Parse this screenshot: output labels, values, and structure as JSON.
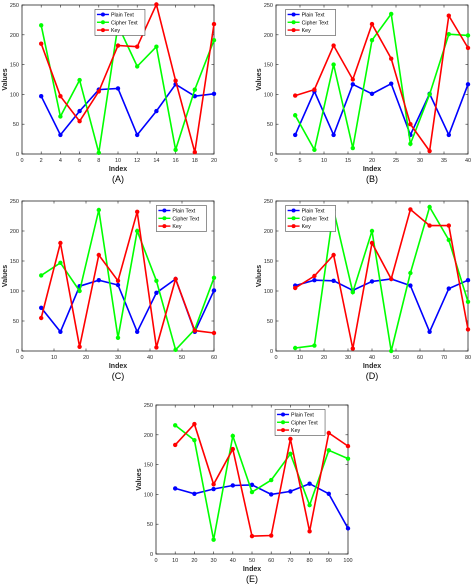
{
  "chart_data": [
    {
      "type": "line",
      "panel_label": "(A)",
      "xlabel": "Index",
      "ylabel": "Values",
      "xlim": [
        0,
        20
      ],
      "ylim": [
        0,
        250
      ],
      "xticks": [
        0,
        2,
        4,
        6,
        8,
        10,
        12,
        14,
        16,
        18,
        20
      ],
      "yticks": [
        0,
        50,
        100,
        150,
        200,
        250
      ],
      "legend_position": "top",
      "series": [
        {
          "name": "Plain Text",
          "color": "#0000ff",
          "x": [
            2,
            4,
            6,
            8,
            10,
            12,
            14,
            16,
            18,
            20
          ],
          "y": [
            97,
            32,
            72,
            108,
            110,
            32,
            72,
            117,
            97,
            101
          ]
        },
        {
          "name": "Cipher Text",
          "color": "#00ff00",
          "x": [
            2,
            4,
            6,
            8,
            10,
            12,
            14,
            16,
            18,
            20
          ],
          "y": [
            216,
            63,
            124,
            2,
            216,
            147,
            180,
            7,
            108,
            191
          ]
        },
        {
          "name": "Key",
          "color": "#ff0000",
          "x": [
            2,
            4,
            6,
            8,
            10,
            12,
            14,
            16,
            18,
            20
          ],
          "y": [
            185,
            97,
            55,
            105,
            182,
            180,
            251,
            123,
            3,
            218
          ]
        }
      ]
    },
    {
      "type": "line",
      "panel_label": "(B)",
      "xlabel": "Index",
      "ylabel": "Values",
      "xlim": [
        0,
        40
      ],
      "ylim": [
        0,
        250
      ],
      "xticks": [
        0,
        5,
        10,
        15,
        20,
        25,
        30,
        35,
        40
      ],
      "yticks": [
        0,
        50,
        100,
        150,
        200,
        250
      ],
      "legend_position": "top-left",
      "series": [
        {
          "name": "Plain Text",
          "color": "#0000ff",
          "x": [
            4,
            8,
            12,
            16,
            20,
            24,
            28,
            32,
            36,
            40
          ],
          "y": [
            32,
            105,
            32,
            117,
            101,
            118,
            32,
            101,
            32,
            117
          ]
        },
        {
          "name": "Cipher Text",
          "color": "#00ff00",
          "x": [
            4,
            8,
            12,
            16,
            20,
            24,
            28,
            32,
            36,
            40
          ],
          "y": [
            65,
            7,
            150,
            10,
            191,
            235,
            17,
            100,
            201,
            199
          ]
        },
        {
          "name": "Key",
          "color": "#ff0000",
          "x": [
            4,
            8,
            12,
            16,
            20,
            24,
            28,
            32,
            36,
            40
          ],
          "y": [
            98,
            108,
            182,
            125,
            218,
            160,
            50,
            5,
            232,
            178
          ]
        }
      ]
    },
    {
      "type": "line",
      "panel_label": "(C)",
      "xlabel": "Index",
      "ylabel": "Values",
      "xlim": [
        0,
        60
      ],
      "ylim": [
        0,
        250
      ],
      "xticks": [
        0,
        10,
        20,
        30,
        40,
        50,
        60
      ],
      "yticks": [
        0,
        50,
        100,
        150,
        200,
        250
      ],
      "legend_position": "top-right",
      "series": [
        {
          "name": "Plain Text",
          "color": "#0000ff",
          "x": [
            6,
            12,
            18,
            24,
            30,
            36,
            42,
            48,
            54,
            60
          ],
          "y": [
            72,
            32,
            108,
            118,
            110,
            32,
            97,
            120,
            32,
            101
          ]
        },
        {
          "name": "Cipher Text",
          "color": "#00ff00",
          "x": [
            6,
            12,
            18,
            24,
            30,
            36,
            42,
            48,
            54,
            60
          ],
          "y": [
            126,
            147,
            100,
            235,
            22,
            200,
            117,
            2,
            36,
            122
          ]
        },
        {
          "name": "Key",
          "color": "#ff0000",
          "x": [
            6,
            12,
            18,
            24,
            30,
            36,
            42,
            48,
            54,
            60
          ],
          "y": [
            55,
            180,
            7,
            160,
            117,
            232,
            6,
            120,
            34,
            30
          ]
        }
      ]
    },
    {
      "type": "line",
      "panel_label": "(D)",
      "xlabel": "Index",
      "ylabel": "Values",
      "xlim": [
        0,
        80
      ],
      "ylim": [
        0,
        250
      ],
      "xticks": [
        0,
        10,
        20,
        30,
        40,
        50,
        60,
        70,
        80
      ],
      "yticks": [
        0,
        50,
        100,
        150,
        200,
        250
      ],
      "legend_position": "top-left",
      "series": [
        {
          "name": "Plain Text",
          "color": "#0000ff",
          "x": [
            8,
            16,
            24,
            32,
            40,
            48,
            56,
            64,
            72,
            80
          ],
          "y": [
            109,
            118,
            117,
            101,
            116,
            120,
            109,
            32,
            104,
            118
          ]
        },
        {
          "name": "Cipher Text",
          "color": "#00ff00",
          "x": [
            8,
            16,
            24,
            32,
            40,
            48,
            56,
            64,
            72,
            80
          ],
          "y": [
            5,
            9,
            235,
            98,
            200,
            0,
            130,
            240,
            185,
            82
          ]
        },
        {
          "name": "Key",
          "color": "#ff0000",
          "x": [
            8,
            16,
            24,
            32,
            40,
            48,
            56,
            64,
            72,
            80
          ],
          "y": [
            105,
            125,
            160,
            4,
            180,
            120,
            236,
            209,
            209,
            36
          ]
        }
      ]
    },
    {
      "type": "line",
      "panel_label": "(E)",
      "xlabel": "Index",
      "ylabel": "Values",
      "xlim": [
        0,
        100
      ],
      "ylim": [
        0,
        250
      ],
      "xticks": [
        0,
        10,
        20,
        30,
        40,
        50,
        60,
        70,
        80,
        90,
        100
      ],
      "yticks": [
        0,
        50,
        100,
        150,
        200,
        250
      ],
      "legend_position": "top-right",
      "series": [
        {
          "name": "Plain Text",
          "color": "#0000ff",
          "x": [
            10,
            20,
            30,
            40,
            50,
            60,
            70,
            80,
            90,
            100
          ],
          "y": [
            110,
            101,
            109,
            115,
            116,
            100,
            105,
            118,
            101,
            43
          ]
        },
        {
          "name": "Cipher Text",
          "color": "#00ff00",
          "x": [
            10,
            20,
            30,
            40,
            50,
            60,
            70,
            80,
            90,
            100
          ],
          "y": [
            216,
            191,
            24,
            198,
            104,
            124,
            168,
            82,
            174,
            160
          ]
        },
        {
          "name": "Key",
          "color": "#ff0000",
          "x": [
            10,
            20,
            30,
            40,
            50,
            60,
            70,
            80,
            90,
            100
          ],
          "y": [
            183,
            218,
            117,
            176,
            30,
            31,
            193,
            38,
            203,
            181
          ]
        }
      ]
    }
  ]
}
